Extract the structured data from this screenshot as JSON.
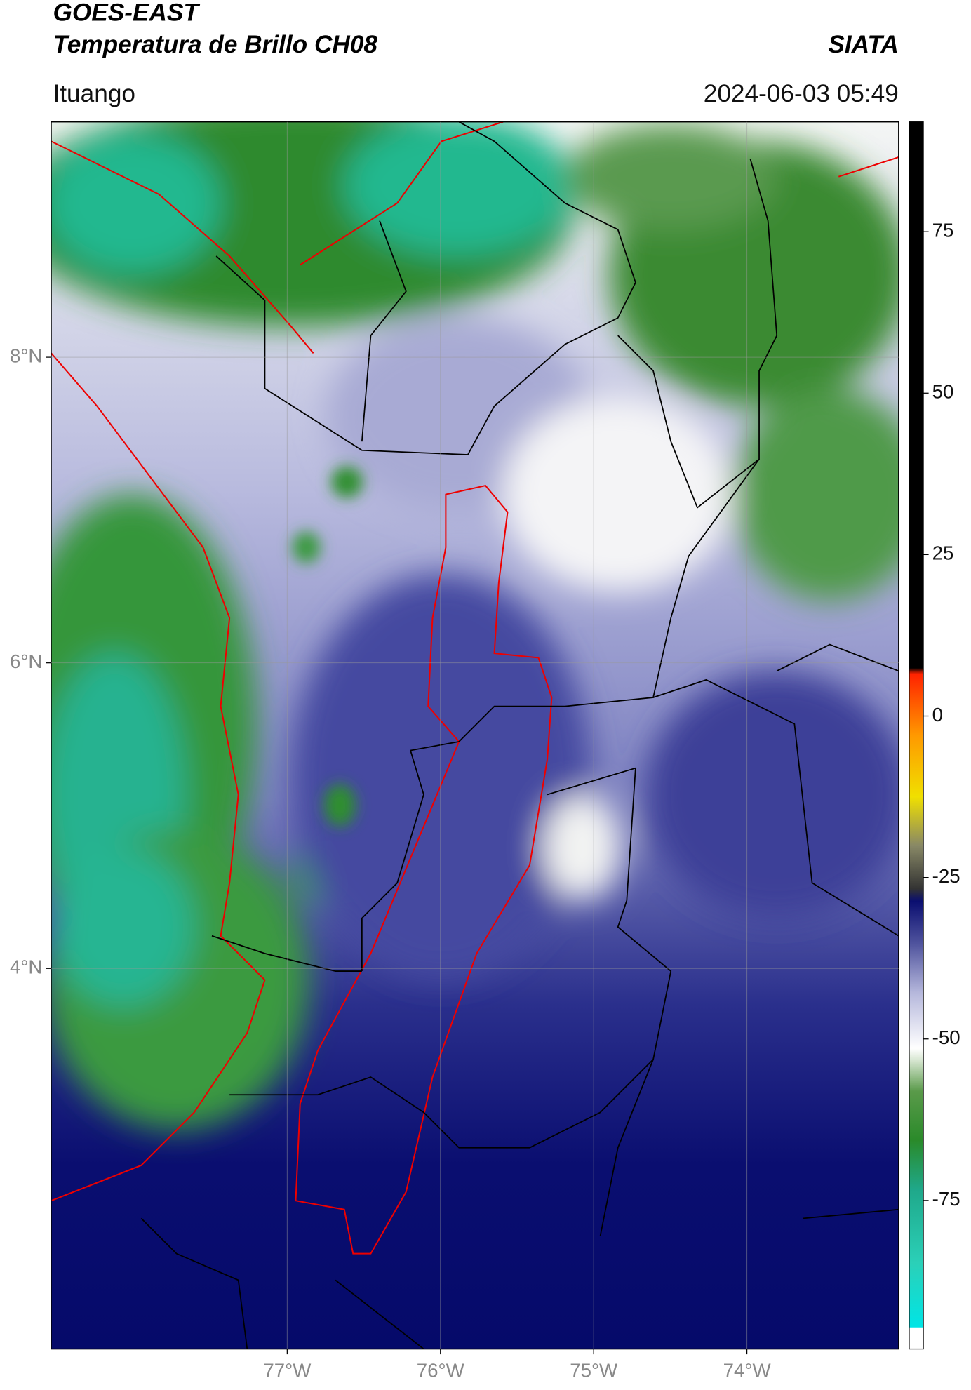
{
  "header": {
    "title": "GOES-EAST",
    "subtitle": "Temperatura de Brillo CH08",
    "org": "SIATA",
    "location": "Ituango",
    "timestamp": "2024-06-03 05:49"
  },
  "map": {
    "lonlim": [
      -78.54,
      -73.01
    ],
    "latlim": [
      1.51,
      9.54
    ],
    "lonticks": [
      {
        "value": -77,
        "label": "77°W"
      },
      {
        "value": -76,
        "label": "76°W"
      },
      {
        "value": -75,
        "label": "75°W"
      },
      {
        "value": -74,
        "label": "74°W"
      }
    ],
    "latticks": [
      {
        "value": 8,
        "label": "8°N"
      },
      {
        "value": 6,
        "label": "6°N"
      },
      {
        "value": 4,
        "label": "4°N"
      }
    ]
  },
  "colorbar": {
    "lim": [
      -98,
      92
    ],
    "ticks": [
      75,
      50,
      25,
      0,
      -25,
      -50,
      -75
    ]
  }
}
